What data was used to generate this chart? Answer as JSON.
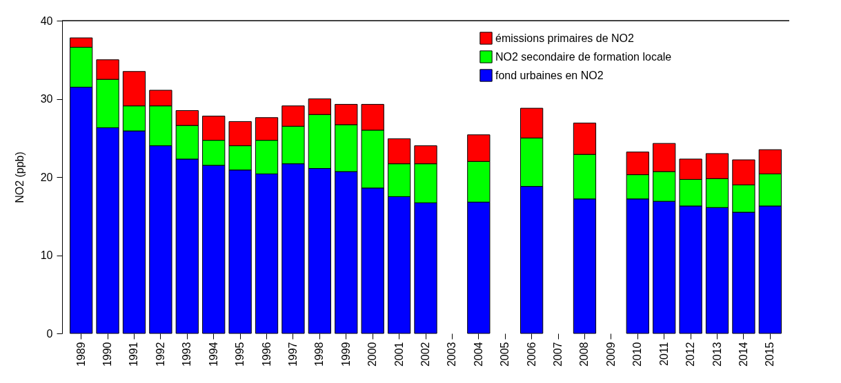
{
  "chart_data": {
    "type": "bar",
    "stacked": true,
    "ylabel": "NO2 (ppb)",
    "ylim": [
      0,
      40
    ],
    "yticks": [
      0,
      10,
      20,
      30,
      40
    ],
    "grid": false,
    "legend": "top right",
    "categories": [
      "1989",
      "1990",
      "1991",
      "1992",
      "1993",
      "1994",
      "1995",
      "1996",
      "1997",
      "1998",
      "1999",
      "2000",
      "2001",
      "2002",
      "2003",
      "2004",
      "2005",
      "2006",
      "2007",
      "2008",
      "2009",
      "2010",
      "2011",
      "2012",
      "2013",
      "2014",
      "2015"
    ],
    "series": [
      {
        "name": "fond urbaines en NO2",
        "color": "#0000ff",
        "values": [
          31.5,
          26.3,
          25.9,
          24.0,
          22.3,
          21.5,
          20.9,
          20.4,
          21.7,
          21.1,
          20.7,
          18.6,
          17.5,
          16.7,
          null,
          16.8,
          null,
          18.8,
          null,
          17.2,
          null,
          17.2,
          16.9,
          16.3,
          16.1,
          15.5,
          16.3
        ]
      },
      {
        "name": "NO2 secondaire de formation locale",
        "color": "#00ff00",
        "values": [
          5.1,
          6.2,
          3.2,
          5.1,
          4.3,
          3.2,
          3.1,
          4.3,
          4.8,
          6.9,
          6.0,
          7.4,
          4.2,
          5.0,
          null,
          5.2,
          null,
          6.2,
          null,
          5.7,
          null,
          3.1,
          3.8,
          3.4,
          3.7,
          3.5,
          4.1
        ]
      },
      {
        "name": "émissions primaires de NO2",
        "color": "#ff0000",
        "values": [
          1.2,
          2.5,
          4.4,
          2.0,
          1.9,
          3.1,
          3.1,
          2.9,
          2.6,
          2.0,
          2.6,
          3.3,
          3.2,
          2.3,
          null,
          3.4,
          null,
          3.8,
          null,
          4.0,
          null,
          2.9,
          3.6,
          2.6,
          3.2,
          3.2,
          3.1
        ]
      }
    ]
  }
}
